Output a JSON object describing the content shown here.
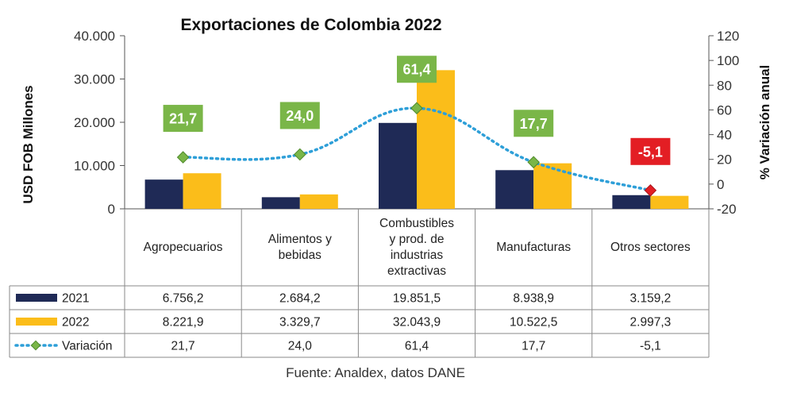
{
  "chart_data": {
    "type": "bar",
    "title": "Exportaciones de Colombia 2022",
    "ylabel": "USD FOB Millones",
    "y2label": "% Variación anual",
    "ylim": [
      0,
      40000
    ],
    "yticks": [
      "0",
      "10.000",
      "20.000",
      "30.000",
      "40.000"
    ],
    "y2lim": [
      -20,
      120
    ],
    "y2ticks": [
      "-20",
      "0",
      "20",
      "40",
      "60",
      "80",
      "100",
      "120"
    ],
    "categories": [
      [
        "Agropecuarios"
      ],
      [
        "Alimentos y",
        "bebidas"
      ],
      [
        "Combustibles",
        "y prod. de",
        "industrias",
        "extractivas"
      ],
      [
        "Manufacturas"
      ],
      [
        "Otros sectores"
      ]
    ],
    "series": [
      {
        "name": "2021",
        "kind": "bar",
        "color": "#1f2a56",
        "values": [
          6756.2,
          2684.2,
          19851.5,
          8938.9,
          3159.2
        ],
        "labels": [
          "6.756,2",
          "2.684,2",
          "19.851,5",
          "8.938,9",
          "3.159,2"
        ]
      },
      {
        "name": "2022",
        "kind": "bar",
        "color": "#fbbd1a",
        "values": [
          8221.9,
          3329.7,
          32043.9,
          10522.5,
          2997.3
        ],
        "labels": [
          "8.221,9",
          "3.329,7",
          "32.043,9",
          "10.522,5",
          "2.997,3"
        ]
      },
      {
        "name": "Variación",
        "kind": "line",
        "axis": "secondary",
        "color": "#2e9fd8",
        "values": [
          21.7,
          24.0,
          61.4,
          17.7,
          -5.1
        ],
        "labels": [
          "21,7",
          "24,0",
          "61,4",
          "17,7",
          "-5,1"
        ]
      }
    ],
    "positive_color": "#7ab648",
    "negative_color": "#e31e24",
    "source": "Fuente: Analdex, datos DANE"
  }
}
